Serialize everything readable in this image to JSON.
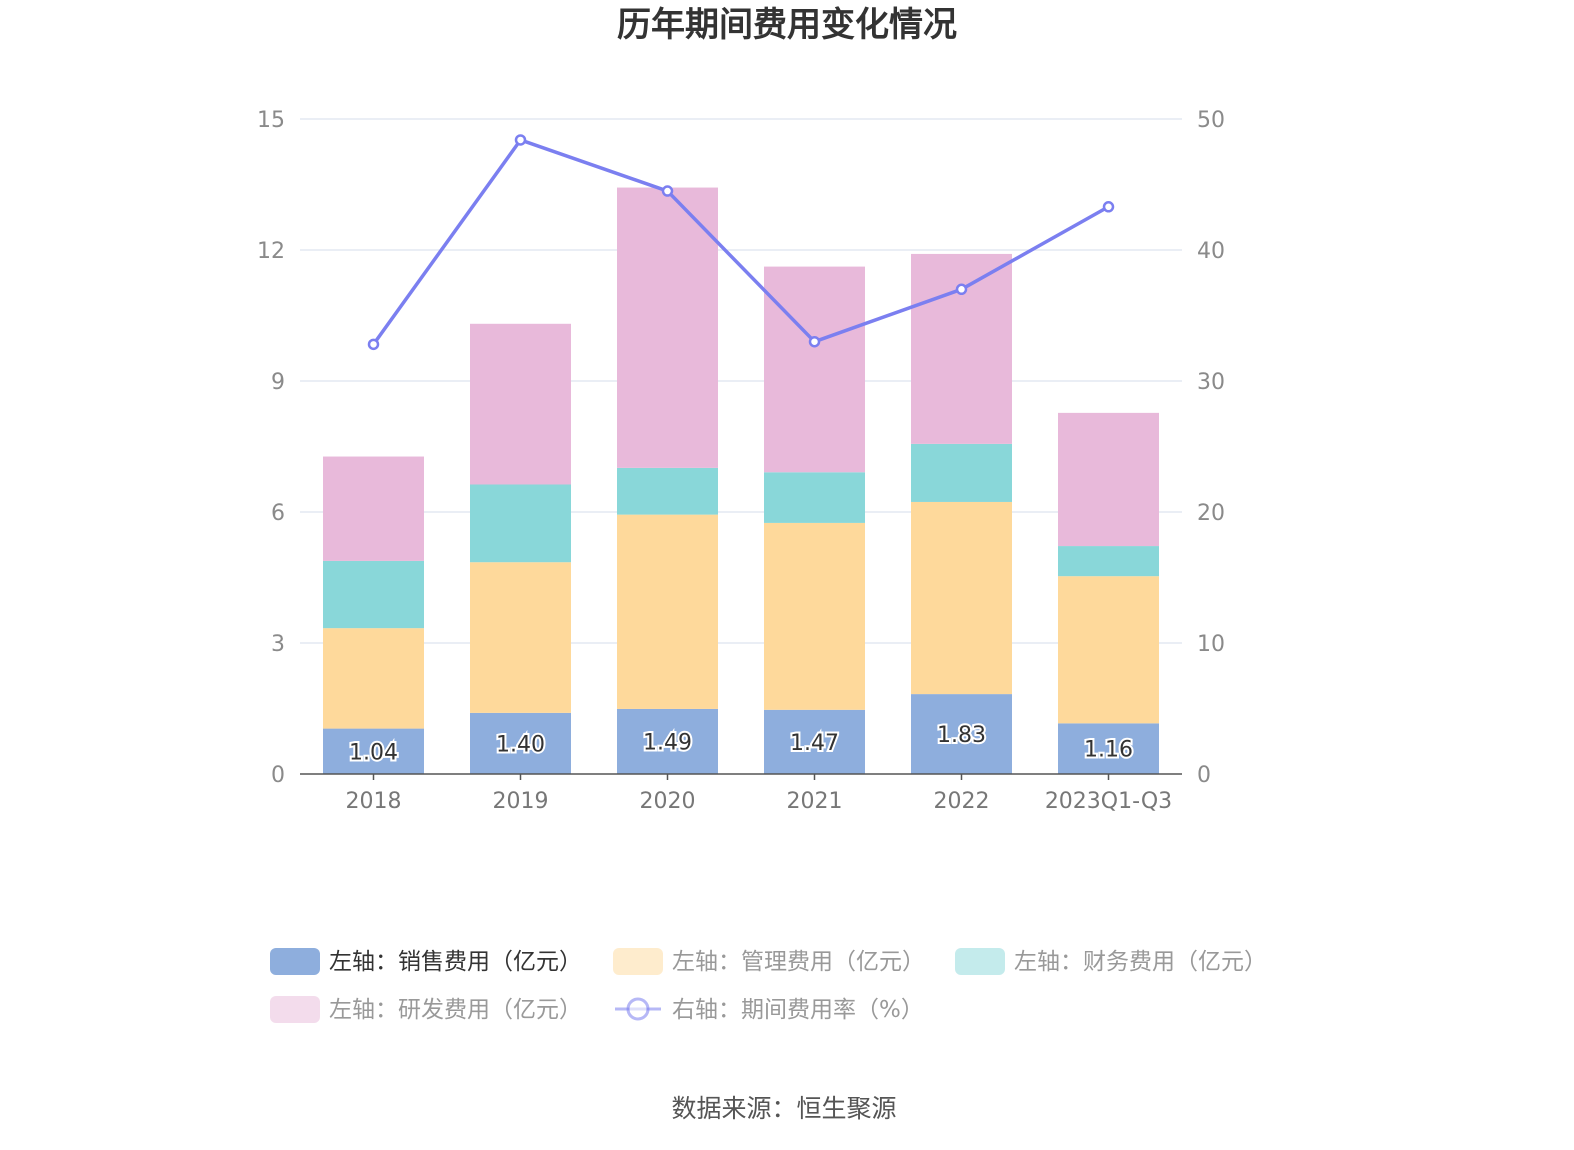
{
  "chart_data": {
    "type": "bar",
    "stacked": true,
    "title": "历年期间费用变化情况",
    "categories": [
      "2018",
      "2019",
      "2020",
      "2021",
      "2022",
      "2023Q1-Q3"
    ],
    "y_left": {
      "ticks": [
        "0",
        "3",
        "6",
        "9",
        "12",
        "15"
      ],
      "range": [
        0,
        15
      ]
    },
    "y_right": {
      "ticks": [
        "0",
        "10",
        "20",
        "30",
        "40",
        "50"
      ],
      "range": [
        0,
        50
      ]
    },
    "series": [
      {
        "name": "左轴：销售费用（亿元）",
        "type": "bar",
        "axis": "left",
        "color": "#8eaedd",
        "values": [
          1.04,
          1.4,
          1.49,
          1.47,
          1.83,
          1.16
        ],
        "labels": [
          "1.04",
          "1.40",
          "1.49",
          "1.47",
          "1.83",
          "1.16"
        ]
      },
      {
        "name": "左轴：管理费用（亿元）",
        "type": "bar",
        "axis": "left",
        "color": "#fed99b",
        "values": [
          2.3,
          3.45,
          4.45,
          4.28,
          4.4,
          3.37
        ]
      },
      {
        "name": "左轴：财务费用（亿元）",
        "type": "bar",
        "axis": "left",
        "color": "#89d7d9",
        "values": [
          1.54,
          1.78,
          1.07,
          1.16,
          1.33,
          0.69
        ]
      },
      {
        "name": "左轴：研发费用（亿元）",
        "type": "bar",
        "axis": "left",
        "color": "#e8b9da",
        "values": [
          2.39,
          3.68,
          6.42,
          4.71,
          4.35,
          3.05
        ]
      },
      {
        "name": "右轴：期间费用率（%）",
        "type": "line",
        "axis": "right",
        "color": "#7b7ff0",
        "values": [
          32.8,
          48.4,
          44.5,
          33.0,
          37.0,
          43.3
        ]
      }
    ]
  },
  "source": "数据来源：恒生聚源"
}
